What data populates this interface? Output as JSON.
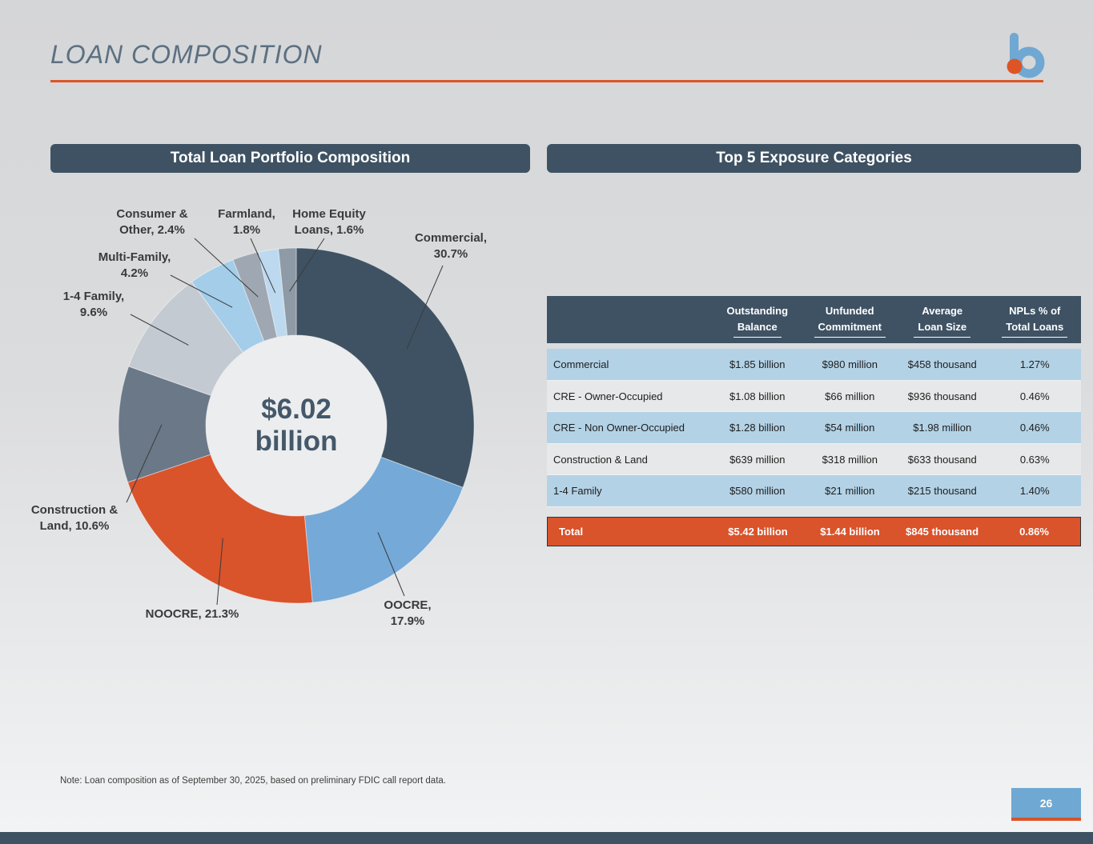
{
  "page": {
    "title": "LOAN COMPOSITION",
    "note": "Note: Loan composition as of September 30, 2025, based on preliminary FDIC call report data.",
    "page_number": "26",
    "logo": "byline-b-logo"
  },
  "colors": {
    "accent_orange": "#d9532b",
    "dark_slate": "#3e5263",
    "brand_blue": "#6fa8d2",
    "row_blue": "#b3d2e6",
    "row_gray": "#e7e8e9",
    "leader_line": "#3c3c3c",
    "hole_fill": "#ecedee"
  },
  "panels": {
    "left": "Total Loan Portfolio Composition",
    "right": "Top 5 Exposure Categories"
  },
  "chart_data": [
    {
      "type": "pie",
      "title": "Total Loan Portfolio Composition",
      "center_value": "$6.02",
      "center_unit": "billion",
      "total_label": "$6.02 billion",
      "units": "percent of total loans",
      "segments": [
        {
          "label": "Commercial",
          "display": "Commercial,\n30.7%",
          "value": 30.7,
          "color": "#3e5263"
        },
        {
          "label": "OOCRE",
          "display": "OOCRE,\n17.9%",
          "value": 17.9,
          "color": "#74a9d8"
        },
        {
          "label": "NOOCRE",
          "display": "NOOCRE, 21.3%",
          "value": 21.3,
          "color": "#d9532b"
        },
        {
          "label": "Construction & Land",
          "display": "Construction &\nLand, 10.6%",
          "value": 10.6,
          "color": "#6a7888"
        },
        {
          "label": "1-4 Family",
          "display": "1-4 Family,\n9.6%",
          "value": 9.6,
          "color": "#c3cad1"
        },
        {
          "label": "Multi-Family",
          "display": "Multi-Family,\n4.2%",
          "value": 4.2,
          "color": "#a3cde9"
        },
        {
          "label": "Consumer & Other",
          "display": "Consumer &\nOther, 2.4%",
          "value": 2.4,
          "color": "#9fa8b2"
        },
        {
          "label": "Farmland",
          "display": "Farmland,\n1.8%",
          "value": 1.8,
          "color": "#bcd9ef"
        },
        {
          "label": "Home Equity Loans",
          "display": "Home Equity\nLoans, 1.6%",
          "value": 1.6,
          "color": "#8e9aa6"
        }
      ]
    },
    {
      "type": "table",
      "title": "Top 5 Exposure Categories",
      "columns": [
        {
          "line1": "Outstanding",
          "line2": "Balance"
        },
        {
          "line1": "Unfunded",
          "line2": "Commitment"
        },
        {
          "line1": "Average",
          "line2": "Loan Size"
        },
        {
          "line1": "NPLs % of",
          "line2": "Total Loans"
        }
      ],
      "rows": [
        {
          "label": "Commercial",
          "values": [
            "$1.85 billion",
            "$980 million",
            "$458 thousand",
            "1.27%"
          ]
        },
        {
          "label": "CRE - Owner-Occupied",
          "values": [
            "$1.08 billion",
            "$66 million",
            "$936 thousand",
            "0.46%"
          ]
        },
        {
          "label": "CRE - Non Owner-Occupied",
          "values": [
            "$1.28 billion",
            "$54 million",
            "$1.98 million",
            "0.46%"
          ]
        },
        {
          "label": "Construction & Land",
          "values": [
            "$639 million",
            "$318 million",
            "$633 thousand",
            "0.63%"
          ]
        },
        {
          "label": "1-4 Family",
          "values": [
            "$580 million",
            "$21 million",
            "$215 thousand",
            "1.40%"
          ]
        }
      ],
      "total_row": {
        "label": "Total",
        "values": [
          "$5.42 billion",
          "$1.44 billion",
          "$845 thousand",
          "0.86%"
        ]
      }
    }
  ]
}
